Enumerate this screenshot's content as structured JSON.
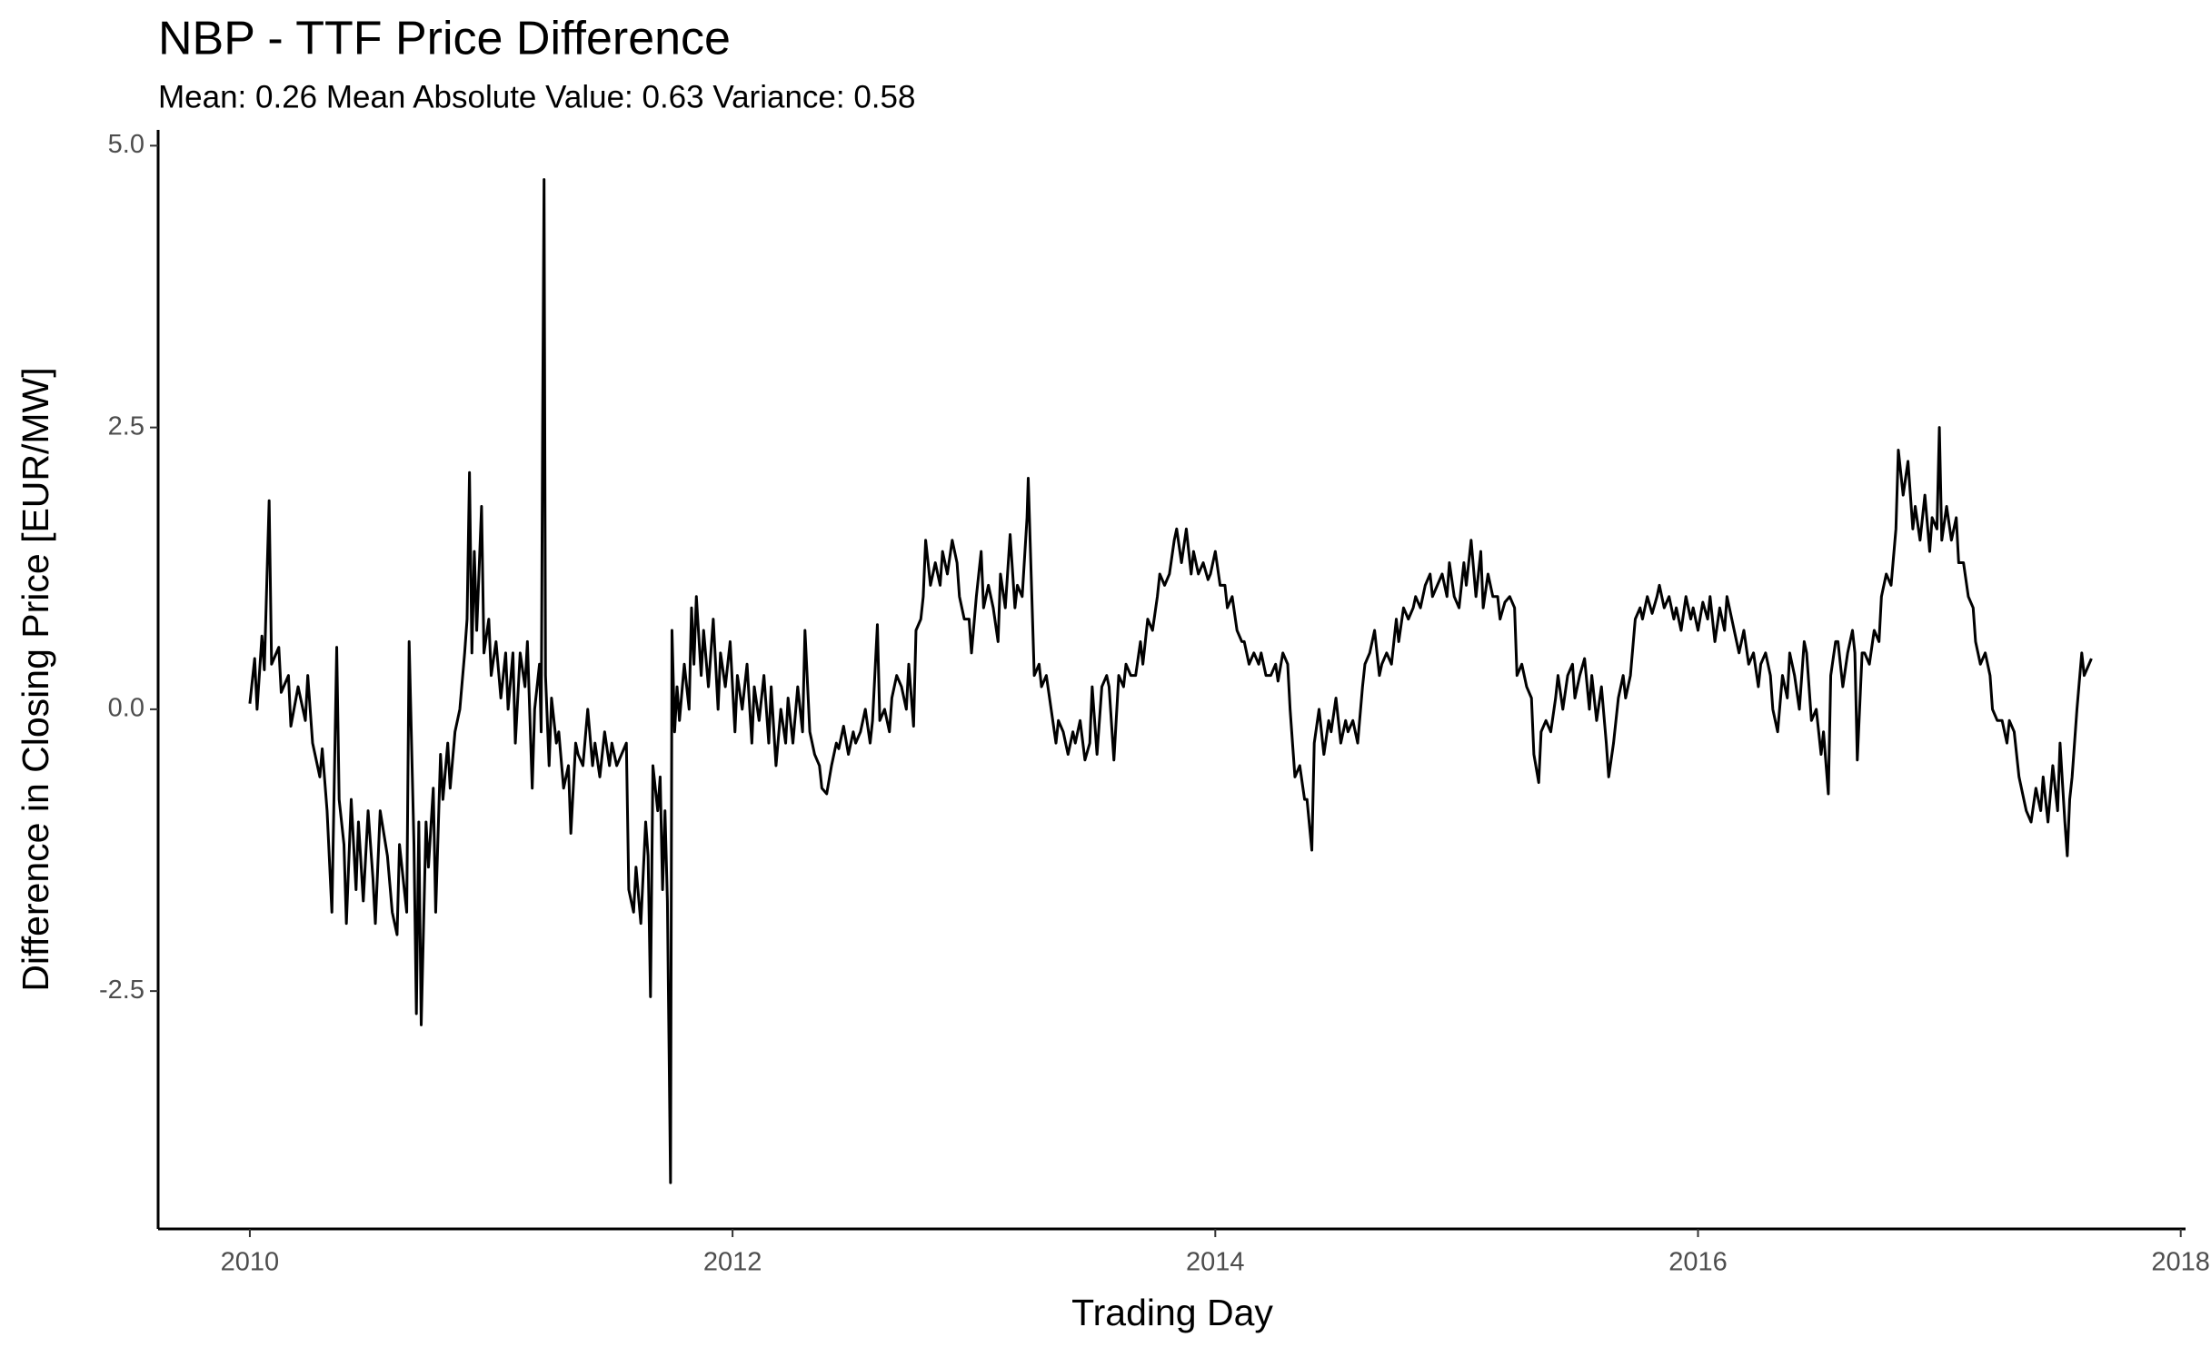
{
  "chart_data": {
    "type": "line",
    "title": "NBP - TTF  Price Difference",
    "subtitle": "Mean: 0.26 Mean Absolute Value: 0.63 Variance: 0.58",
    "x_label": "Trading Day",
    "y_label": "Difference in Closing Price [EUR/MW]",
    "color": "#000000",
    "grid": false,
    "xlim": [
      2009.62,
      2018.02
    ],
    "ylim": [
      -4.61,
      5.14
    ],
    "xticks": [
      2010,
      2012,
      2014,
      2016,
      2018
    ],
    "yticks": [
      -2.5,
      {
        "value": 0,
        "label": "0.0"
      },
      2.5,
      {
        "value": 5,
        "label": "5.0"
      }
    ],
    "x": [
      2010.0,
      2010.02,
      2010.03,
      2010.05,
      2010.06,
      2010.08,
      2010.09,
      2010.12,
      2010.13,
      2010.16,
      2010.17,
      2010.2,
      2010.23,
      2010.24,
      2010.26,
      2010.29,
      2010.3,
      2010.32,
      2010.34,
      2010.36,
      2010.37,
      2010.39,
      2010.4,
      2010.42,
      2010.44,
      2010.45,
      2010.47,
      2010.49,
      2010.51,
      2010.52,
      2010.54,
      2010.57,
      2010.59,
      2010.61,
      2010.62,
      2010.65,
      2010.66,
      2010.68,
      2010.69,
      2010.7,
      2010.71,
      2010.73,
      2010.74,
      2010.76,
      2010.77,
      2010.79,
      2010.8,
      2010.82,
      2010.83,
      2010.85,
      2010.87,
      2010.89,
      2010.9,
      2010.91,
      2010.92,
      2010.93,
      2010.94,
      2010.96,
      2010.97,
      2010.99,
      2011.0,
      2011.02,
      2011.04,
      2011.06,
      2011.07,
      2011.09,
      2011.1,
      2011.12,
      2011.14,
      2011.15,
      2011.17,
      2011.18,
      2011.2,
      2011.207,
      2011.213,
      2011.219,
      2011.225,
      2011.24,
      2011.25,
      2011.27,
      2011.28,
      2011.3,
      2011.32,
      2011.33,
      2011.35,
      2011.36,
      2011.38,
      2011.4,
      2011.42,
      2011.43,
      2011.45,
      2011.47,
      2011.49,
      2011.5,
      2011.52,
      2011.54,
      2011.56,
      2011.57,
      2011.59,
      2011.6,
      2011.62,
      2011.64,
      2011.65,
      2011.66,
      2011.67,
      2011.69,
      2011.7,
      2011.71,
      2011.72,
      2011.73,
      2011.743,
      2011.749,
      2011.76,
      2011.77,
      2011.78,
      2011.8,
      2011.82,
      2011.83,
      2011.84,
      2011.85,
      2011.87,
      2011.88,
      2011.9,
      2011.92,
      2011.94,
      2011.95,
      2011.97,
      2011.99,
      2012.01,
      2012.02,
      2012.04,
      2012.06,
      2012.08,
      2012.09,
      2012.11,
      2012.13,
      2012.15,
      2012.16,
      2012.18,
      2012.2,
      2012.22,
      2012.23,
      2012.25,
      2012.27,
      2012.29,
      2012.3,
      2012.32,
      2012.34,
      2012.36,
      2012.37,
      2012.39,
      2012.41,
      2012.43,
      2012.44,
      2012.46,
      2012.48,
      2012.5,
      2012.51,
      2012.53,
      2012.55,
      2012.57,
      2012.58,
      2012.6,
      2012.61,
      2012.63,
      2012.65,
      2012.66,
      2012.68,
      2012.7,
      2012.72,
      2012.73,
      2012.75,
      2012.76,
      2012.78,
      2012.79,
      2012.8,
      2012.82,
      2012.84,
      2012.86,
      2012.87,
      2012.89,
      2012.91,
      2012.93,
      2012.94,
      2012.96,
      2012.98,
      2012.99,
      2013.01,
      2013.03,
      2013.04,
      2013.06,
      2013.08,
      2013.1,
      2013.11,
      2013.13,
      2013.15,
      2013.17,
      2013.18,
      2013.2,
      2013.22,
      2013.225,
      2013.24,
      2013.25,
      2013.27,
      2013.28,
      2013.3,
      2013.32,
      2013.34,
      2013.35,
      2013.37,
      2013.39,
      2013.41,
      2013.42,
      2013.44,
      2013.46,
      2013.48,
      2013.49,
      2013.51,
      2013.53,
      2013.55,
      2013.56,
      2013.58,
      2013.6,
      2013.62,
      2013.63,
      2013.65,
      2013.67,
      2013.69,
      2013.7,
      2013.72,
      2013.74,
      2013.76,
      2013.77,
      2013.79,
      2013.81,
      2013.83,
      2013.84,
      2013.86,
      2013.88,
      2013.9,
      2013.91,
      2013.93,
      2013.95,
      2013.97,
      2013.98,
      2014.0,
      2014.02,
      2014.04,
      2014.05,
      2014.07,
      2014.09,
      2014.11,
      2014.12,
      2014.14,
      2014.16,
      2014.18,
      2014.19,
      2014.21,
      2014.23,
      2014.25,
      2014.26,
      2014.28,
      2014.3,
      2014.31,
      2014.33,
      2014.35,
      2014.37,
      2014.38,
      2014.4,
      2014.41,
      2014.43,
      2014.45,
      2014.47,
      2014.48,
      2014.5,
      2014.52,
      2014.54,
      2014.55,
      2014.57,
      2014.59,
      2014.61,
      2014.62,
      2014.64,
      2014.66,
      2014.68,
      2014.69,
      2014.71,
      2014.73,
      2014.75,
      2014.76,
      2014.78,
      2014.8,
      2014.82,
      2014.83,
      2014.85,
      2014.87,
      2014.89,
      2014.9,
      2014.92,
      2014.94,
      2014.96,
      2014.97,
      2014.99,
      2015.01,
      2015.03,
      2015.04,
      2015.06,
      2015.08,
      2015.1,
      2015.11,
      2015.13,
      2015.15,
      2015.17,
      2015.18,
      2015.2,
      2015.22,
      2015.24,
      2015.25,
      2015.27,
      2015.29,
      2015.31,
      2015.32,
      2015.34,
      2015.35,
      2015.37,
      2015.39,
      2015.41,
      2015.42,
      2015.44,
      2015.46,
      2015.48,
      2015.49,
      2015.51,
      2015.53,
      2015.55,
      2015.56,
      2015.58,
      2015.6,
      2015.62,
      2015.63,
      2015.65,
      2015.67,
      2015.69,
      2015.7,
      2015.72,
      2015.74,
      2015.76,
      2015.77,
      2015.79,
      2015.81,
      2015.83,
      2015.84,
      2015.86,
      2015.88,
      2015.9,
      2015.91,
      2015.93,
      2015.95,
      2015.97,
      2015.98,
      2016.0,
      2016.02,
      2016.04,
      2016.05,
      2016.07,
      2016.09,
      2016.11,
      2016.12,
      2016.14,
      2016.16,
      2016.17,
      2016.19,
      2016.21,
      2016.23,
      2016.25,
      2016.26,
      2016.28,
      2016.3,
      2016.31,
      2016.33,
      2016.35,
      2016.37,
      2016.38,
      2016.4,
      2016.42,
      2016.44,
      2016.45,
      2016.47,
      2016.49,
      2016.51,
      2016.52,
      2016.54,
      2016.55,
      2016.57,
      2016.58,
      2016.6,
      2016.62,
      2016.64,
      2016.65,
      2016.66,
      2016.68,
      2016.69,
      2016.71,
      2016.73,
      2016.75,
      2016.76,
      2016.78,
      2016.8,
      2016.82,
      2016.83,
      2016.85,
      2016.87,
      2016.89,
      2016.9,
      2016.92,
      2016.94,
      2016.96,
      2016.97,
      2016.99,
      2017.0,
      2017.01,
      2017.03,
      2017.05,
      2017.07,
      2017.08,
      2017.1,
      2017.12,
      2017.14,
      2017.15,
      2017.17,
      2017.19,
      2017.21,
      2017.22,
      2017.24,
      2017.26,
      2017.28,
      2017.29,
      2017.31,
      2017.33,
      2017.35,
      2017.36,
      2017.38,
      2017.4,
      2017.42,
      2017.43,
      2017.45,
      2017.47,
      2017.49,
      2017.5,
      2017.52,
      2017.53,
      2017.54,
      2017.55,
      2017.57,
      2017.59,
      2017.6,
      2017.62,
      2017.63
    ],
    "values": [
      0.05,
      0.45,
      0.0,
      0.65,
      0.35,
      1.85,
      0.4,
      0.55,
      0.15,
      0.3,
      -0.15,
      0.2,
      -0.1,
      0.3,
      -0.3,
      -0.6,
      -0.35,
      -0.9,
      -1.8,
      0.55,
      -0.8,
      -1.2,
      -1.9,
      -0.8,
      -1.6,
      -1.0,
      -1.7,
      -0.9,
      -1.5,
      -1.9,
      -0.9,
      -1.3,
      -1.8,
      -2.0,
      -1.2,
      -1.8,
      0.6,
      -1.2,
      -2.7,
      -1.0,
      -2.8,
      -1.0,
      -1.4,
      -0.7,
      -1.8,
      -0.4,
      -0.8,
      -0.3,
      -0.7,
      -0.2,
      0.0,
      0.5,
      0.8,
      2.1,
      0.5,
      1.4,
      0.7,
      1.8,
      0.5,
      0.8,
      0.3,
      0.6,
      0.1,
      0.5,
      0.0,
      0.5,
      -0.3,
      0.5,
      0.2,
      0.6,
      -0.7,
      0.0,
      0.4,
      -0.2,
      2.5,
      4.7,
      0.3,
      -0.5,
      0.1,
      -0.3,
      -0.2,
      -0.7,
      -0.5,
      -1.1,
      -0.3,
      -0.4,
      -0.5,
      0.0,
      -0.5,
      -0.3,
      -0.6,
      -0.2,
      -0.5,
      -0.3,
      -0.5,
      -0.4,
      -0.3,
      -1.6,
      -1.8,
      -1.4,
      -1.9,
      -1.0,
      -1.3,
      -2.55,
      -0.5,
      -0.9,
      -0.6,
      -1.6,
      -0.9,
      -1.7,
      -4.2,
      0.7,
      -0.2,
      0.2,
      -0.1,
      0.4,
      0.0,
      0.9,
      0.4,
      1.0,
      0.3,
      0.7,
      0.2,
      0.8,
      0.0,
      0.5,
      0.2,
      0.6,
      -0.2,
      0.3,
      0.0,
      0.4,
      -0.3,
      0.2,
      -0.1,
      0.3,
      -0.3,
      0.2,
      -0.5,
      0.0,
      -0.3,
      0.1,
      -0.3,
      0.2,
      -0.2,
      0.7,
      -0.2,
      -0.4,
      -0.5,
      -0.7,
      -0.75,
      -0.5,
      -0.3,
      -0.35,
      -0.15,
      -0.4,
      -0.2,
      -0.3,
      -0.2,
      0.0,
      -0.3,
      -0.1,
      0.75,
      -0.1,
      0.0,
      -0.2,
      0.1,
      0.3,
      0.2,
      0.0,
      0.4,
      -0.15,
      0.7,
      0.8,
      1.0,
      1.5,
      1.1,
      1.3,
      1.1,
      1.4,
      1.2,
      1.5,
      1.3,
      1.0,
      0.8,
      0.8,
      0.5,
      1.0,
      1.4,
      0.9,
      1.1,
      0.9,
      0.6,
      1.2,
      0.9,
      1.55,
      0.9,
      1.1,
      1.0,
      1.7,
      2.05,
      1.0,
      0.3,
      0.4,
      0.2,
      0.3,
      0.0,
      -0.3,
      -0.1,
      -0.2,
      -0.4,
      -0.2,
      -0.3,
      -0.1,
      -0.45,
      -0.3,
      0.2,
      -0.4,
      0.2,
      0.3,
      0.2,
      -0.45,
      0.3,
      0.2,
      0.4,
      0.3,
      0.3,
      0.6,
      0.4,
      0.8,
      0.7,
      1.0,
      1.2,
      1.1,
      1.2,
      1.5,
      1.6,
      1.3,
      1.6,
      1.2,
      1.4,
      1.2,
      1.3,
      1.15,
      1.2,
      1.4,
      1.1,
      1.1,
      0.9,
      1.0,
      0.7,
      0.6,
      0.6,
      0.4,
      0.5,
      0.4,
      0.5,
      0.3,
      0.3,
      0.4,
      0.25,
      0.5,
      0.4,
      0.0,
      -0.6,
      -0.5,
      -0.8,
      -0.8,
      -1.25,
      -0.3,
      0.0,
      -0.4,
      -0.1,
      -0.2,
      0.1,
      -0.3,
      -0.1,
      -0.2,
      -0.1,
      -0.3,
      0.2,
      0.4,
      0.5,
      0.7,
      0.3,
      0.4,
      0.5,
      0.4,
      0.8,
      0.6,
      0.9,
      0.8,
      0.9,
      1.0,
      0.9,
      1.1,
      1.2,
      1.0,
      1.1,
      1.2,
      1.0,
      1.3,
      1.0,
      0.9,
      1.3,
      1.1,
      1.5,
      1.0,
      1.4,
      0.9,
      1.2,
      1.0,
      1.0,
      0.8,
      0.95,
      1.0,
      0.9,
      0.3,
      0.4,
      0.2,
      0.1,
      -0.4,
      -0.65,
      -0.2,
      -0.1,
      -0.2,
      0.1,
      0.3,
      0.0,
      0.3,
      0.4,
      0.1,
      0.3,
      0.45,
      0.0,
      0.3,
      -0.1,
      0.2,
      -0.3,
      -0.6,
      -0.3,
      0.1,
      0.3,
      0.1,
      0.3,
      0.8,
      0.9,
      0.8,
      1.0,
      0.85,
      1.0,
      1.1,
      0.9,
      1.0,
      0.8,
      0.9,
      0.7,
      1.0,
      0.8,
      0.9,
      0.7,
      0.95,
      0.8,
      1.0,
      0.6,
      0.9,
      0.7,
      1.0,
      0.8,
      0.6,
      0.5,
      0.7,
      0.4,
      0.5,
      0.2,
      0.4,
      0.5,
      0.3,
      0.0,
      -0.2,
      0.3,
      0.1,
      0.5,
      0.3,
      0.0,
      0.6,
      0.5,
      -0.1,
      0.0,
      -0.4,
      -0.2,
      -0.75,
      0.3,
      0.6,
      0.6,
      0.2,
      0.5,
      0.7,
      0.5,
      -0.45,
      0.5,
      0.5,
      0.4,
      0.7,
      0.6,
      1.0,
      1.2,
      1.1,
      1.6,
      2.3,
      1.9,
      2.2,
      1.6,
      1.8,
      1.5,
      1.9,
      1.4,
      1.7,
      1.6,
      2.5,
      1.5,
      1.8,
      1.5,
      1.7,
      1.3,
      1.3,
      1.0,
      0.9,
      0.6,
      0.4,
      0.5,
      0.3,
      0.0,
      -0.1,
      -0.1,
      -0.3,
      -0.1,
      -0.2,
      -0.6,
      -0.8,
      -0.9,
      -1.0,
      -0.7,
      -0.9,
      -0.6,
      -1.0,
      -0.5,
      -0.9,
      -0.3,
      -1.0,
      -1.3,
      -0.8,
      -0.6,
      0.0,
      0.5,
      0.3,
      0.4,
      0.45
    ]
  }
}
